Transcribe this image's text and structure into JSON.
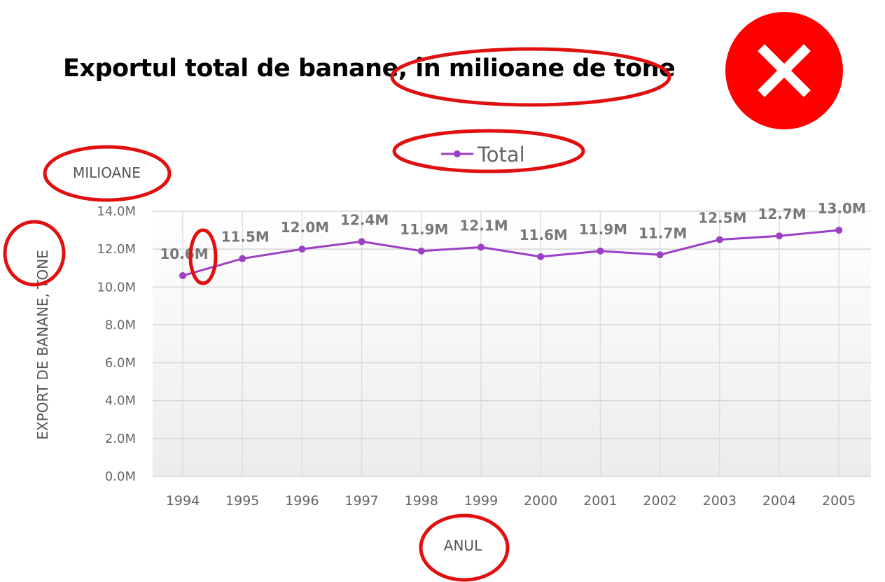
{
  "title": "Exportul total de banane, în milioane de tone",
  "close_icon": "close-icon",
  "colors": {
    "series": "#9b3fc4",
    "annotation": "#e01010",
    "close_bg": "#ff0000"
  },
  "chart_data": {
    "type": "line",
    "title": "Exportul total de banane, în milioane de tone",
    "x": [
      "1994",
      "1995",
      "1996",
      "1997",
      "1998",
      "1999",
      "2000",
      "2001",
      "2002",
      "2003",
      "2004",
      "2005"
    ],
    "series": [
      {
        "name": "Total",
        "values": [
          10.6,
          11.5,
          12.0,
          12.4,
          11.9,
          12.1,
          11.6,
          11.9,
          11.7,
          12.5,
          12.7,
          13.0
        ],
        "labels": [
          "10.6M",
          "11.5M",
          "12.0M",
          "12.4M",
          "11.9M",
          "12.1M",
          "11.6M",
          "11.9M",
          "11.7M",
          "12.5M",
          "12.7M",
          "13.0M"
        ]
      }
    ],
    "xlabel": "ANUL",
    "ylabel": "EXPORT DE BANANE, TONE",
    "unit_label": "MILIOANE",
    "yticks": [
      "0.0M",
      "2.0M",
      "4.0M",
      "6.0M",
      "8.0M",
      "10.0M",
      "12.0M",
      "14.0M"
    ],
    "ylim": [
      0,
      14
    ],
    "grid": true,
    "legend": "top-center"
  }
}
